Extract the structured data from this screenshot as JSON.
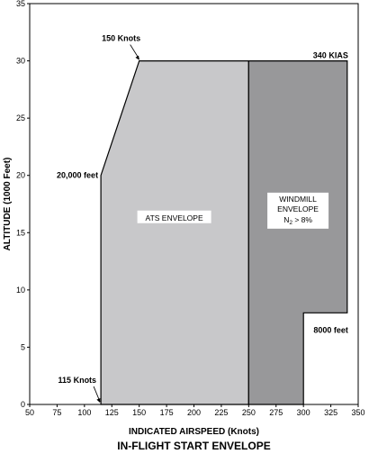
{
  "chart_data": {
    "type": "area",
    "title": "IN-FLIGHT START ENVELOPE",
    "xlabel": "INDICATED AIRSPEED (Knots)",
    "ylabel": "ALTITUDE (1000 Feet)",
    "xlim": [
      50,
      350
    ],
    "ylim": [
      0,
      35
    ],
    "xticks": [
      "50",
      "75",
      "100",
      "125",
      "150",
      "175",
      "200",
      "225",
      "250",
      "275",
      "300",
      "325",
      "350"
    ],
    "yticks": [
      "0",
      "5",
      "10",
      "15",
      "20",
      "25",
      "30",
      "35"
    ],
    "grid": false,
    "regions": [
      {
        "name": "ATS ENVELOPE",
        "color": "#c8c8ca",
        "points": [
          [
            115,
            0
          ],
          [
            115,
            20
          ],
          [
            150,
            30
          ],
          [
            250,
            30
          ],
          [
            250,
            0
          ]
        ]
      },
      {
        "name": "WINDMILL ENVELOPE",
        "sublabel_main": "N",
        "sublabel_sub": "2",
        "sublabel_rest": " > 8%",
        "color": "#98989a",
        "points": [
          [
            250,
            0
          ],
          [
            250,
            30
          ],
          [
            340,
            30
          ],
          [
            340,
            8
          ],
          [
            300,
            8
          ],
          [
            300,
            0
          ]
        ]
      }
    ],
    "annotations": [
      {
        "text": "150 Knots",
        "x": 150,
        "y": 30
      },
      {
        "text": "340 KIAS",
        "x": 340,
        "y": 30
      },
      {
        "text": "20,000 feet",
        "x": 115,
        "y": 20
      },
      {
        "text": "8000 feet",
        "x": 300,
        "y": 8
      },
      {
        "text": "115 Knots",
        "x": 115,
        "y": 0
      }
    ]
  }
}
